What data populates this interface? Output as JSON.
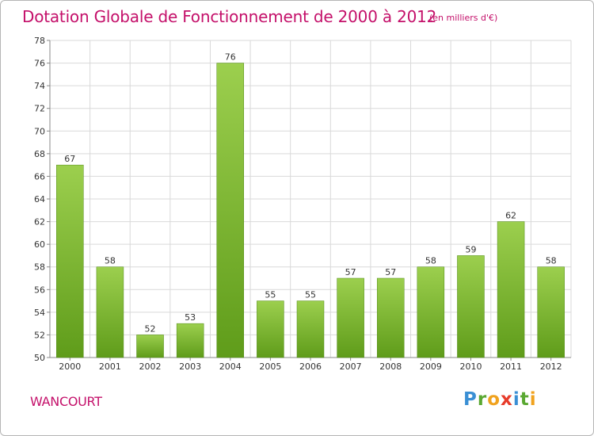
{
  "header": {
    "title": "Dotation Globale de Fonctionnement de 2000 à 2012",
    "subtitle": "(en milliers d'€)"
  },
  "footer": {
    "commune": "WANCOURT",
    "logo": [
      "P",
      "r",
      "o",
      "x",
      "i",
      "t",
      "i"
    ]
  },
  "colors": {
    "title": "#c4106a",
    "bar_top": "#9ccf4e",
    "bar_bottom": "#5f9c1a",
    "grid": "#d9d9d9"
  },
  "chart_data": {
    "type": "bar",
    "title": "Dotation Globale de Fonctionnement de 2000 à 2012",
    "subtitle": "(en milliers d'€)",
    "xlabel": "",
    "ylabel": "",
    "categories": [
      "2000",
      "2001",
      "2002",
      "2003",
      "2004",
      "2005",
      "2006",
      "2007",
      "2008",
      "2009",
      "2010",
      "2011",
      "2012"
    ],
    "values": [
      67,
      58,
      52,
      53,
      76,
      55,
      55,
      57,
      57,
      58,
      59,
      62,
      58
    ],
    "ylim": [
      50,
      78
    ],
    "yticks": [
      50,
      52,
      54,
      56,
      58,
      60,
      62,
      64,
      66,
      68,
      70,
      72,
      74,
      76,
      78
    ],
    "grid": true,
    "legend": "none"
  }
}
